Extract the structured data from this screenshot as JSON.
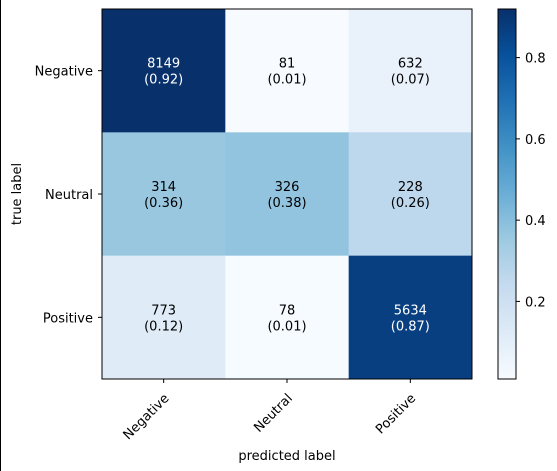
{
  "chart_data": {
    "type": "heatmap",
    "xlabel": "predicted label",
    "ylabel": "true label",
    "x_categories": [
      "Negative",
      "Neutral",
      "Positive"
    ],
    "y_categories": [
      "Negative",
      "Neutral",
      "Positive"
    ],
    "counts": [
      [
        8149,
        81,
        632
      ],
      [
        314,
        326,
        228
      ],
      [
        773,
        78,
        5634
      ]
    ],
    "ratio_labels": [
      [
        "(0.92)",
        "(0.01)",
        "(0.07)"
      ],
      [
        "(0.36)",
        "(0.38)",
        "(0.26)"
      ],
      [
        "(0.12)",
        "(0.01)",
        "(0.87)"
      ]
    ],
    "ratios": [
      [
        0.9196,
        0.0091,
        0.0713
      ],
      [
        0.3618,
        0.3756,
        0.2627
      ],
      [
        0.1192,
        0.012,
        0.8688
      ]
    ],
    "colorbar": {
      "colormap": "Blues",
      "range": [
        0.0091,
        0.9196
      ],
      "ticks": [
        0.2,
        0.4,
        0.6,
        0.8
      ],
      "tick_labels": [
        "0.2",
        "0.4",
        "0.6",
        "0.8"
      ]
    }
  }
}
